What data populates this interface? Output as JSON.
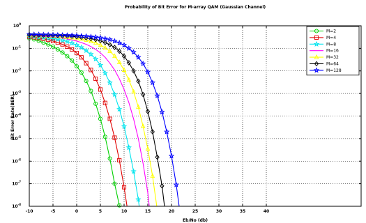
{
  "chart_data": {
    "type": "line",
    "title": "Probability of Bit Error for M-array QAM (Gaussian Channel)",
    "xlabel": "Eb/No (db)",
    "ylabel": "Bit Error Rate(BER)",
    "xlim": [
      -10,
      60
    ],
    "xticks": [
      -10,
      -5,
      0,
      5,
      10,
      15,
      20,
      25,
      30,
      35,
      40
    ],
    "xtick_labels": [
      "-10",
      "-5",
      "0",
      "5",
      "10",
      "15",
      "20",
      "25",
      "30",
      "35",
      "40"
    ],
    "ylim_log10": [
      -8,
      0
    ],
    "yscale": "log",
    "ytick_exponents": [
      0,
      -1,
      -2,
      -3,
      -4,
      -5,
      -6,
      -7,
      -8
    ],
    "ytick_base": "10",
    "grid": true,
    "legend_position": "top-right",
    "series": [
      {
        "name": "M=2",
        "color": "#00d000",
        "marker": "circle",
        "x": [
          -10,
          -9,
          -8,
          -7,
          -6,
          -5,
          -4,
          -3,
          -2,
          -1,
          0,
          1,
          2,
          3,
          4,
          5,
          6,
          7,
          8,
          9,
          10
        ],
        "y": [
          0.28,
          0.25,
          0.215,
          0.18,
          0.15,
          0.12,
          0.09,
          0.065,
          0.045,
          0.029,
          0.016,
          0.0085,
          0.0036,
          0.0013,
          0.00035,
          7.5e-05,
          1.2e-05,
          1.3e-06,
          1e-07,
          1.1e-08,
          4e-10
        ]
      },
      {
        "name": "M=4",
        "color": "#e00000",
        "marker": "square",
        "x": [
          -10,
          -9,
          -8,
          -7,
          -6,
          -5,
          -4,
          -3,
          -2,
          -1,
          0,
          1,
          2,
          3,
          4,
          5,
          6,
          7,
          8,
          9,
          10,
          11,
          12
        ],
        "y": [
          0.33,
          0.31,
          0.29,
          0.265,
          0.24,
          0.21,
          0.18,
          0.15,
          0.12,
          0.09,
          0.062,
          0.04,
          0.022,
          0.011,
          0.0045,
          0.0015,
          0.00038,
          7.5e-05,
          1.1e-05,
          1.1e-06,
          7e-08,
          3e-09,
          1e-10
        ]
      },
      {
        "name": "M=8",
        "color": "#00e5ee",
        "marker": "star",
        "x": [
          -10,
          -9,
          -8,
          -7,
          -6,
          -5,
          -4,
          -3,
          -2,
          -1,
          0,
          1,
          2,
          3,
          4,
          5,
          6,
          7,
          8,
          9,
          10,
          11,
          12,
          13,
          14
        ],
        "y": [
          0.35,
          0.335,
          0.32,
          0.305,
          0.29,
          0.27,
          0.25,
          0.225,
          0.2,
          0.17,
          0.14,
          0.11,
          0.08,
          0.055,
          0.034,
          0.018,
          0.008,
          0.003,
          0.0009,
          0.0002,
          3.5e-05,
          4e-06,
          3.5e-07,
          2e-08,
          5e-10
        ]
      },
      {
        "name": "M=16",
        "color": "#ff00ff",
        "marker": "none",
        "x": [
          -10,
          -9,
          -8,
          -7,
          -6,
          -5,
          -4,
          -3,
          -2,
          -1,
          0,
          1,
          2,
          3,
          4,
          5,
          6,
          7,
          8,
          9,
          10,
          11,
          12,
          13,
          14,
          15,
          16
        ],
        "y": [
          0.37,
          0.36,
          0.35,
          0.34,
          0.33,
          0.315,
          0.3,
          0.28,
          0.26,
          0.235,
          0.21,
          0.18,
          0.15,
          0.12,
          0.09,
          0.063,
          0.04,
          0.022,
          0.011,
          0.0045,
          0.0015,
          0.0004,
          7.5e-05,
          1e-05,
          8e-07,
          4e-08,
          5e-10
        ]
      },
      {
        "name": "M=32",
        "color": "#ffff00",
        "marker": "triangle",
        "x": [
          -10,
          -9,
          -8,
          -7,
          -6,
          -5,
          -4,
          -3,
          -2,
          -1,
          0,
          1,
          2,
          3,
          4,
          5,
          6,
          7,
          8,
          9,
          10,
          11,
          12,
          13,
          14,
          15,
          16,
          17,
          18
        ],
        "y": [
          0.385,
          0.38,
          0.375,
          0.37,
          0.36,
          0.35,
          0.34,
          0.33,
          0.315,
          0.3,
          0.28,
          0.26,
          0.235,
          0.205,
          0.175,
          0.14,
          0.105,
          0.075,
          0.045,
          0.024,
          0.011,
          0.004,
          0.0012,
          0.00025,
          3.5e-05,
          3.5e-06,
          2.2e-07,
          7e-09,
          4e-10
        ]
      },
      {
        "name": "M=64",
        "color": "#000000",
        "marker": "diamond",
        "x": [
          -10,
          -9,
          -8,
          -7,
          -6,
          -5,
          -4,
          -3,
          -2,
          -1,
          0,
          1,
          2,
          3,
          4,
          5,
          6,
          7,
          8,
          9,
          10,
          11,
          12,
          13,
          14,
          15,
          16,
          17,
          18,
          19,
          20
        ],
        "y": [
          0.4,
          0.395,
          0.39,
          0.385,
          0.38,
          0.375,
          0.37,
          0.36,
          0.35,
          0.34,
          0.325,
          0.31,
          0.29,
          0.27,
          0.245,
          0.215,
          0.18,
          0.145,
          0.11,
          0.075,
          0.045,
          0.023,
          0.01,
          0.0035,
          0.0009,
          0.00016,
          2e-05,
          1.5e-06,
          8e-08,
          1.5e-09,
          4e-10
        ]
      },
      {
        "name": "M=128",
        "color": "#0000ff",
        "marker": "star",
        "x": [
          -10,
          -9,
          -8,
          -7,
          -6,
          -5,
          -4,
          -3,
          -2,
          -1,
          0,
          1,
          2,
          3,
          4,
          5,
          6,
          7,
          8,
          9,
          10,
          11,
          12,
          13,
          14,
          15,
          16,
          17,
          18,
          19,
          20,
          21,
          22,
          23
        ],
        "y": [
          0.42,
          0.415,
          0.41,
          0.405,
          0.4,
          0.395,
          0.39,
          0.385,
          0.38,
          0.375,
          0.365,
          0.355,
          0.345,
          0.33,
          0.315,
          0.295,
          0.27,
          0.245,
          0.21,
          0.175,
          0.14,
          0.1,
          0.068,
          0.04,
          0.021,
          0.009,
          0.003,
          0.0008,
          0.00015,
          2e-05,
          1.7e-06,
          9e-08,
          2.5e-09,
          4e-10
        ]
      }
    ]
  }
}
